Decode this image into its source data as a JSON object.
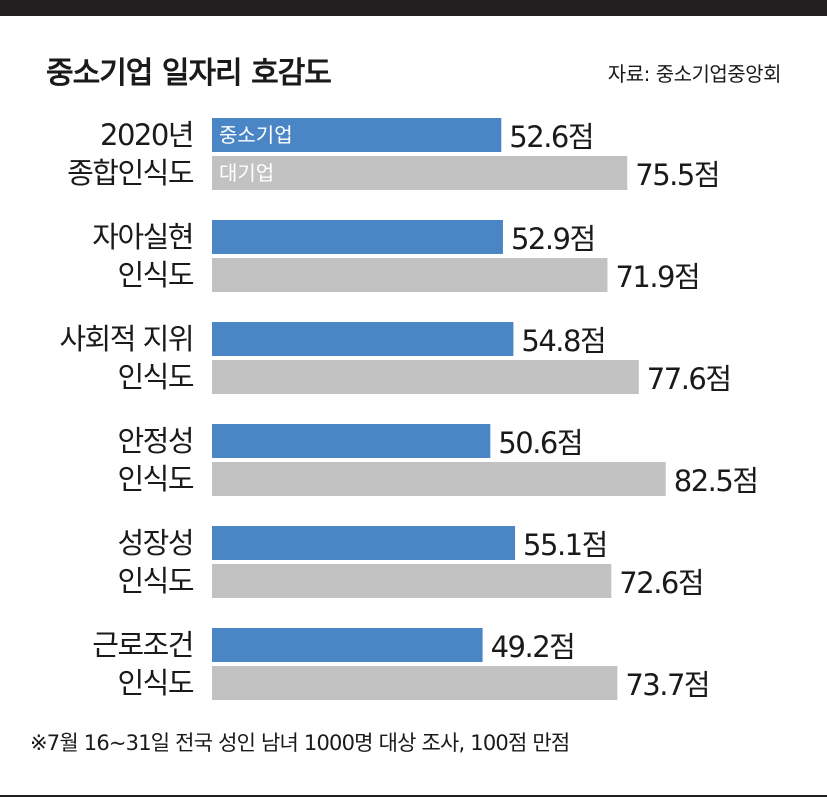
{
  "title": "중소기업 일자리 호감도",
  "source": "자료: 중소기업중앙회",
  "note": "※7월 16~31일 전국 성인 남녀 1000명 대상 조사, 100점 만점",
  "chart_data": {
    "type": "bar",
    "orientation": "horizontal",
    "categories": [
      [
        "2020년",
        "종합인식도"
      ],
      [
        "자아실현",
        "인식도"
      ],
      [
        "사회적 지위",
        "인식도"
      ],
      [
        "안정성",
        "인식도"
      ],
      [
        "성장성",
        "인식도"
      ],
      [
        "근로조건",
        "인식도"
      ]
    ],
    "series": [
      {
        "name": "중소기업",
        "color": "#4a86c5",
        "values": [
          52.6,
          52.9,
          54.8,
          50.6,
          55.1,
          49.2
        ]
      },
      {
        "name": "대기업",
        "color": "#c2c2c2",
        "values": [
          75.5,
          71.9,
          77.6,
          82.5,
          72.6,
          73.7
        ]
      }
    ],
    "value_suffix": "점",
    "legend_placement": "inside-first-bars",
    "grid": false
  }
}
